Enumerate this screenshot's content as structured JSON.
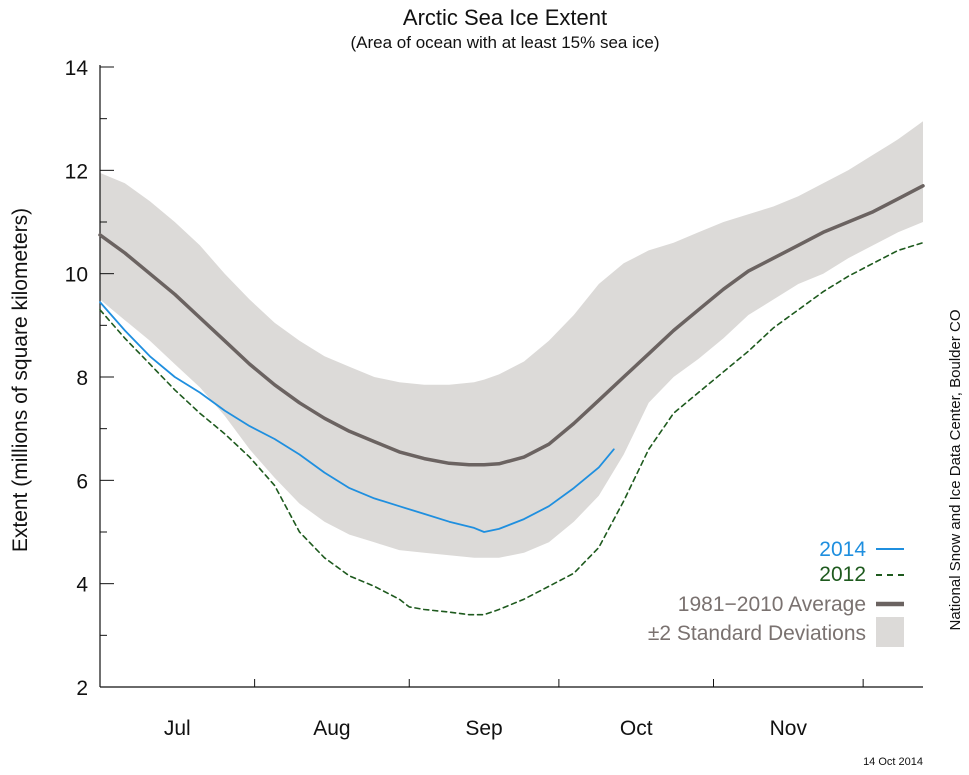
{
  "chart_data": {
    "type": "line",
    "title": "Arctic Sea Ice Extent",
    "subtitle": "(Area of ocean with at least 15% sea ice)",
    "ylabel": "Extent (millions of square kilometers)",
    "xlabel": "",
    "ylim": [
      2,
      14
    ],
    "yticks": [
      "2",
      "4",
      "6",
      "8",
      "10",
      "12",
      "14"
    ],
    "xlim": [
      0,
      165
    ],
    "month_boundaries": [
      0,
      31,
      62,
      92,
      123,
      153
    ],
    "x_tick_labels": [
      {
        "label": "Jul",
        "x": 15.5
      },
      {
        "label": "Aug",
        "x": 46.5
      },
      {
        "label": "Sep",
        "x": 77
      },
      {
        "label": "Oct",
        "x": 107.5
      },
      {
        "label": "Nov",
        "x": 138
      }
    ],
    "credit": "National Snow and Ice Data Center, Boulder CO",
    "date_stamp": "14 Oct 2014",
    "colors": {
      "s2014": "#1f8fdf",
      "s2012": "#1e5a1e",
      "average": "#6b6361",
      "band": "#dcdad8",
      "legend_gray": "#7a7270"
    },
    "series": [
      {
        "name": "2014",
        "legend": "2014",
        "style": "solid",
        "x": [
          0,
          5,
          10,
          15,
          20,
          25,
          30,
          35,
          40,
          45,
          50,
          55,
          60,
          65,
          70,
          75,
          77,
          80,
          85,
          90,
          95,
          100,
          103
        ],
        "values": [
          9.45,
          8.9,
          8.4,
          8.0,
          7.7,
          7.35,
          7.05,
          6.8,
          6.5,
          6.15,
          5.85,
          5.65,
          5.5,
          5.35,
          5.2,
          5.08,
          5.0,
          5.06,
          5.25,
          5.5,
          5.85,
          6.25,
          6.6
        ]
      },
      {
        "name": "2012",
        "legend": "2012",
        "style": "dashed",
        "x": [
          0,
          5,
          10,
          15,
          20,
          25,
          30,
          35,
          40,
          45,
          50,
          55,
          60,
          62,
          65,
          70,
          74,
          77,
          80,
          85,
          90,
          95,
          100,
          105,
          110,
          115,
          120,
          125,
          130,
          135,
          140,
          145,
          150,
          155,
          160,
          165
        ],
        "values": [
          9.3,
          8.75,
          8.25,
          7.75,
          7.3,
          6.9,
          6.45,
          5.9,
          5.0,
          4.5,
          4.15,
          3.95,
          3.7,
          3.55,
          3.5,
          3.45,
          3.4,
          3.4,
          3.5,
          3.7,
          3.95,
          4.2,
          4.7,
          5.6,
          6.6,
          7.3,
          7.7,
          8.1,
          8.5,
          8.95,
          9.3,
          9.65,
          9.95,
          10.2,
          10.45,
          10.6
        ]
      },
      {
        "name": "1981-2010 Average",
        "legend": "1981−2010 Average",
        "style": "thick",
        "x": [
          0,
          5,
          10,
          15,
          20,
          25,
          30,
          35,
          40,
          45,
          50,
          55,
          60,
          65,
          70,
          74,
          77,
          80,
          85,
          90,
          95,
          100,
          105,
          110,
          115,
          120,
          125,
          130,
          135,
          140,
          145,
          150,
          155,
          160,
          165
        ],
        "values": [
          10.75,
          10.4,
          10.0,
          9.6,
          9.15,
          8.7,
          8.25,
          7.85,
          7.5,
          7.2,
          6.95,
          6.75,
          6.55,
          6.42,
          6.33,
          6.3,
          6.3,
          6.32,
          6.45,
          6.7,
          7.1,
          7.55,
          8.0,
          8.45,
          8.9,
          9.3,
          9.7,
          10.05,
          10.3,
          10.55,
          10.8,
          11.0,
          11.2,
          11.45,
          11.7
        ]
      }
    ],
    "band": {
      "name": "±2 Standard Deviations",
      "legend": "±2 Standard Deviations",
      "x": [
        0,
        5,
        10,
        15,
        20,
        25,
        30,
        35,
        40,
        45,
        50,
        55,
        60,
        65,
        70,
        75,
        77,
        80,
        85,
        90,
        95,
        100,
        105,
        110,
        115,
        120,
        125,
        130,
        135,
        140,
        145,
        150,
        155,
        160,
        165
      ],
      "upper": [
        11.95,
        11.75,
        11.4,
        11.0,
        10.55,
        10.0,
        9.5,
        9.05,
        8.7,
        8.4,
        8.2,
        8.0,
        7.9,
        7.85,
        7.85,
        7.9,
        7.95,
        8.05,
        8.3,
        8.7,
        9.2,
        9.8,
        10.2,
        10.45,
        10.6,
        10.8,
        11.0,
        11.15,
        11.3,
        11.5,
        11.75,
        12.0,
        12.3,
        12.6,
        12.95
      ],
      "lower": [
        9.5,
        9.1,
        8.7,
        8.25,
        7.8,
        7.25,
        6.6,
        6.05,
        5.55,
        5.2,
        4.95,
        4.8,
        4.65,
        4.6,
        4.55,
        4.5,
        4.5,
        4.5,
        4.6,
        4.8,
        5.2,
        5.7,
        6.5,
        7.5,
        8.0,
        8.35,
        8.75,
        9.2,
        9.5,
        9.8,
        10.0,
        10.3,
        10.55,
        10.8,
        11.0
      ]
    }
  }
}
